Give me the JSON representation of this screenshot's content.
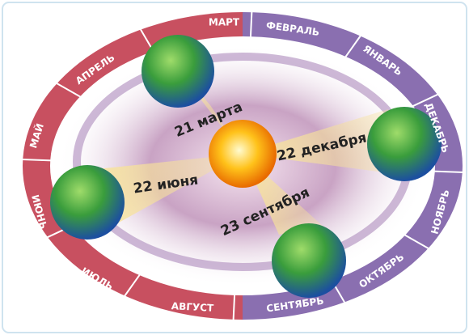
{
  "months": [
    "МАРТ",
    "ФЕВРАЛЬ",
    "ЯНВАРЬ",
    "ДЕКАБРЬ",
    "НОЯБРЬ",
    "ОКТЯБРЬ",
    "СЕНТЯБРЬ",
    "АВГУСТ",
    "ИЮЛЬ",
    "ИЮНЬ",
    "МАЙ",
    "АПРЕЛЬ"
  ],
  "dates": [
    "21 марта",
    "22 декабря",
    "22 июня",
    "23 сентября"
  ]
}
